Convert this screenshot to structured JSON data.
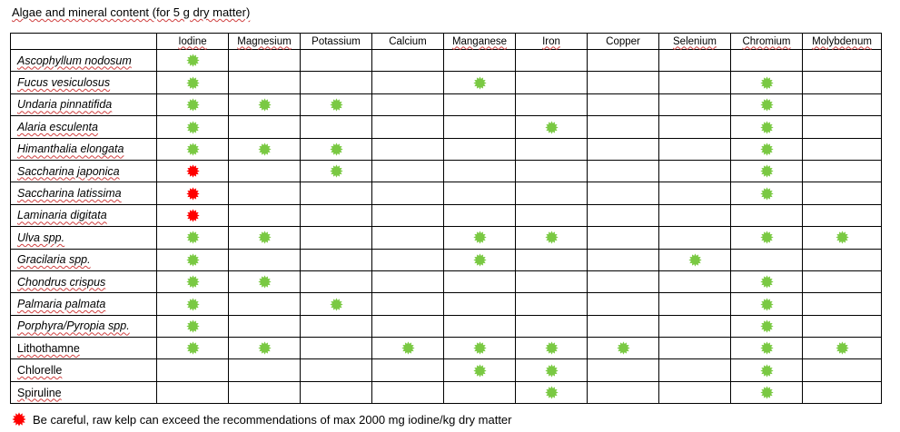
{
  "title": "Algae and mineral content (for 5 g dry matter)",
  "colors": {
    "safe": "#7ac943",
    "warning": "#ff0000"
  },
  "columns": [
    "Iodine",
    "Magnesium",
    "Potassium",
    "Calcium",
    "Manganese",
    "Iron",
    "Copper",
    "Selenium",
    "Chromium",
    "Molybdenum"
  ],
  "rows": [
    {
      "name": "Ascophyllum nodosum",
      "italic": true,
      "marks": [
        "green",
        "",
        "",
        "",
        "",
        "",
        "",
        "",
        "",
        ""
      ]
    },
    {
      "name": "Fucus vesiculosus",
      "italic": true,
      "marks": [
        "green",
        "",
        "",
        "",
        "green",
        "",
        "",
        "",
        "green",
        ""
      ]
    },
    {
      "name": "Undaria pinnatifida",
      "italic": true,
      "marks": [
        "green",
        "green",
        "green",
        "",
        "",
        "",
        "",
        "",
        "green",
        ""
      ]
    },
    {
      "name": "Alaria esculenta",
      "italic": true,
      "marks": [
        "green",
        "",
        "",
        "",
        "",
        "green",
        "",
        "",
        "green",
        ""
      ]
    },
    {
      "name": "Himanthalia elongata",
      "italic": true,
      "marks": [
        "green",
        "green",
        "green",
        "",
        "",
        "",
        "",
        "",
        "green",
        ""
      ]
    },
    {
      "name": "Saccharina japonica",
      "italic": true,
      "marks": [
        "red",
        "",
        "green",
        "",
        "",
        "",
        "",
        "",
        "green",
        ""
      ]
    },
    {
      "name": "Saccharina latissima",
      "italic": true,
      "marks": [
        "red",
        "",
        "",
        "",
        "",
        "",
        "",
        "",
        "green",
        ""
      ]
    },
    {
      "name": "Laminaria digitata",
      "italic": true,
      "marks": [
        "red",
        "",
        "",
        "",
        "",
        "",
        "",
        "",
        "",
        ""
      ]
    },
    {
      "name": "Ulva spp.",
      "italic": true,
      "marks": [
        "green",
        "green",
        "",
        "",
        "green",
        "green",
        "",
        "",
        "green",
        "green"
      ]
    },
    {
      "name": "Gracilaria spp.",
      "italic": true,
      "marks": [
        "green",
        "",
        "",
        "",
        "green",
        "",
        "",
        "green",
        "",
        ""
      ]
    },
    {
      "name": "Chondrus crispus",
      "italic": true,
      "marks": [
        "green",
        "green",
        "",
        "",
        "",
        "",
        "",
        "",
        "green",
        ""
      ]
    },
    {
      "name": "Palmaria palmata",
      "italic": true,
      "marks": [
        "green",
        "",
        "green",
        "",
        "",
        "",
        "",
        "",
        "green",
        ""
      ]
    },
    {
      "name": "Porphyra/Pyropia spp.",
      "italic": true,
      "marks": [
        "green",
        "",
        "",
        "",
        "",
        "",
        "",
        "",
        "green",
        ""
      ]
    },
    {
      "name": "Lithothamne",
      "italic": false,
      "marks": [
        "green",
        "green",
        "",
        "green",
        "green",
        "green",
        "green",
        "",
        "green",
        "green"
      ]
    },
    {
      "name": "Chlorelle",
      "italic": false,
      "marks": [
        "",
        "",
        "",
        "",
        "green",
        "green",
        "",
        "",
        "green",
        ""
      ]
    },
    {
      "name": "Spiruline",
      "italic": false,
      "marks": [
        "",
        "",
        "",
        "",
        "",
        "green",
        "",
        "",
        "green",
        ""
      ]
    }
  ],
  "footer": "Be careful, raw kelp can exceed the recommendations  of max 2000 mg iodine/kg dry matter"
}
